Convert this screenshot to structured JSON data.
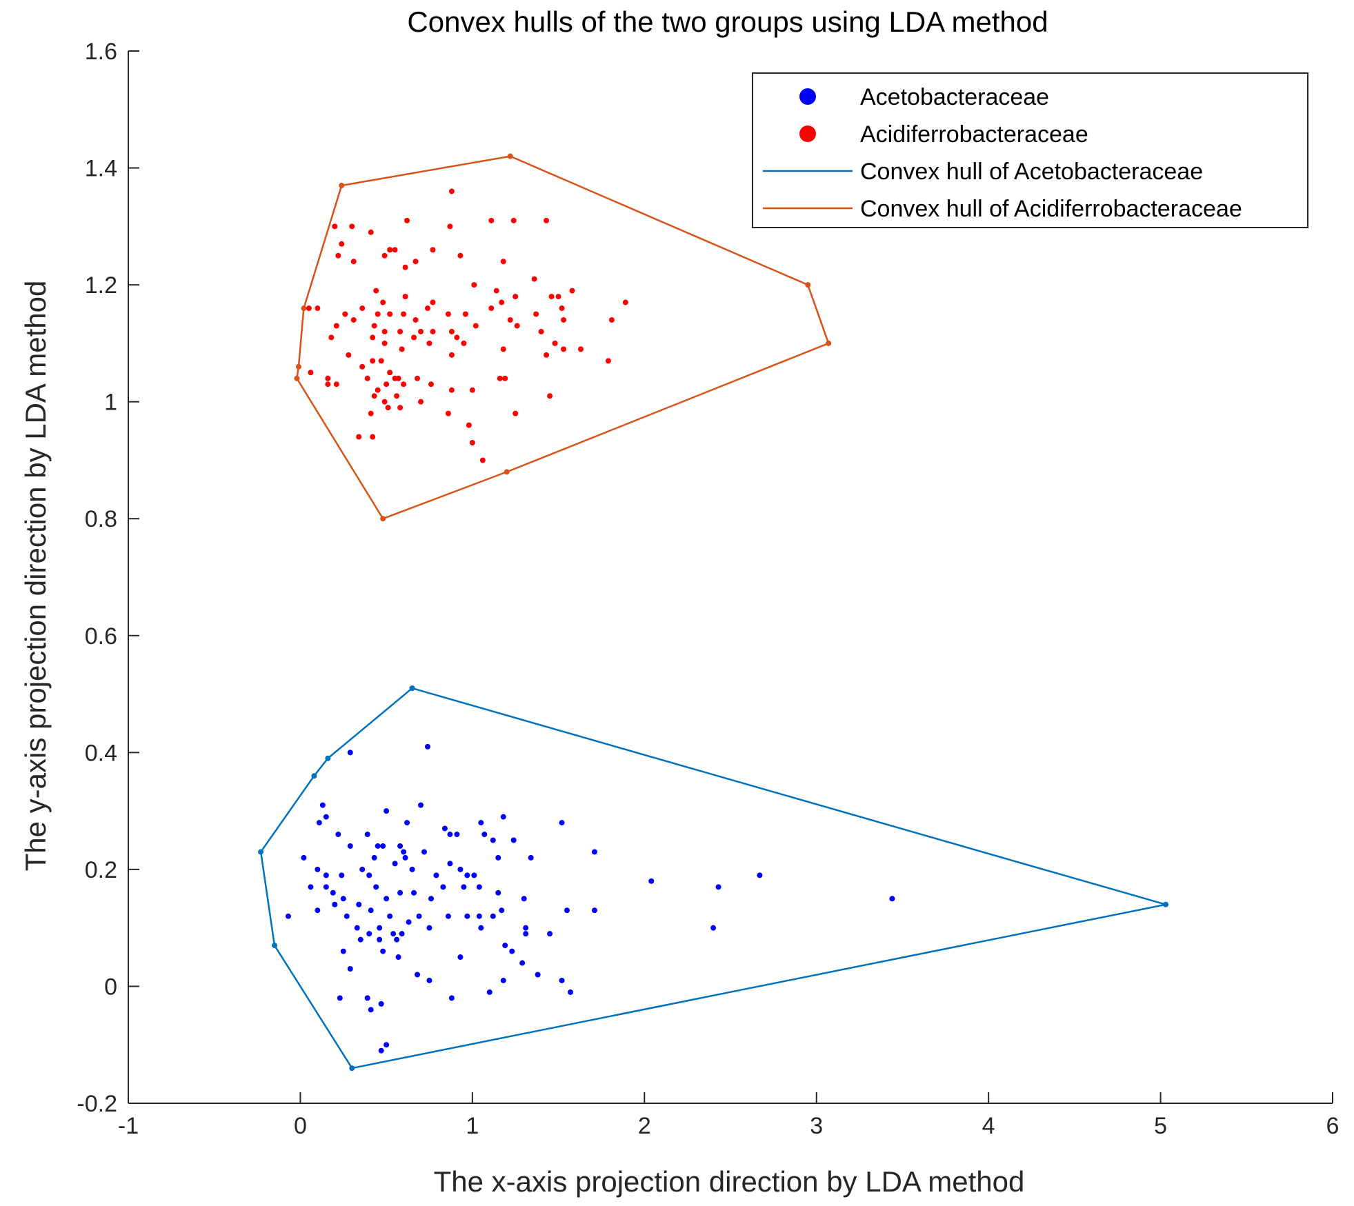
{
  "chart_data": {
    "type": "scatter",
    "title": "Convex hulls of the two groups using LDA method",
    "xlabel": "The x-axis projection direction by LDA method",
    "ylabel": "The y-axis projection direction by LDA method",
    "xlim": [
      -1,
      6
    ],
    "ylim": [
      -0.2,
      1.6
    ],
    "xticks": [
      -1,
      0,
      1,
      2,
      3,
      4,
      5,
      6
    ],
    "yticks": [
      -0.2,
      0,
      0.2,
      0.4,
      0.6,
      0.8,
      1,
      1.2,
      1.4,
      1.6
    ],
    "xtick_labels": [
      "-1",
      "0",
      "1",
      "2",
      "3",
      "4",
      "5",
      "6"
    ],
    "ytick_labels": [
      "-0.2",
      "0",
      "0.2",
      "0.4",
      "0.6",
      "0.8",
      "1",
      "1.2",
      "1.4",
      "1.6"
    ],
    "grid": false,
    "legend_position": "top-right",
    "legend": [
      {
        "label": "Acetobacteraceae",
        "kind": "marker",
        "color": "#0000ff"
      },
      {
        "label": "Acidiferrobacteraceae",
        "kind": "marker",
        "color": "#ff0000"
      },
      {
        "label": "Convex hull of Acetobacteraceae",
        "kind": "line",
        "color": "#0072bd"
      },
      {
        "label": "Convex hull of Acidiferrobacteraceae",
        "kind": "line",
        "color": "#d95319"
      }
    ],
    "series": [
      {
        "name": "Acetobacteraceae",
        "color": "#0000ff",
        "points": [
          [
            0.29,
            0.4
          ],
          [
            0.74,
            0.41
          ],
          [
            0.13,
            0.31
          ],
          [
            0.15,
            0.29
          ],
          [
            0.11,
            0.28
          ],
          [
            0.5,
            0.3
          ],
          [
            0.7,
            0.31
          ],
          [
            0.62,
            0.28
          ],
          [
            1.05,
            0.28
          ],
          [
            1.18,
            0.29
          ],
          [
            1.52,
            0.28
          ],
          [
            0.22,
            0.26
          ],
          [
            0.39,
            0.26
          ],
          [
            0.29,
            0.24
          ],
          [
            0.45,
            0.24
          ],
          [
            0.48,
            0.24
          ],
          [
            0.58,
            0.24
          ],
          [
            0.6,
            0.23
          ],
          [
            0.72,
            0.23
          ],
          [
            0.87,
            0.26
          ],
          [
            0.91,
            0.26
          ],
          [
            0.84,
            0.27
          ],
          [
            1.07,
            0.26
          ],
          [
            1.12,
            0.25
          ],
          [
            1.24,
            0.25
          ],
          [
            1.71,
            0.23
          ],
          [
            0.02,
            0.22
          ],
          [
            0.1,
            0.2
          ],
          [
            0.15,
            0.19
          ],
          [
            0.24,
            0.19
          ],
          [
            0.36,
            0.2
          ],
          [
            0.4,
            0.19
          ],
          [
            0.43,
            0.22
          ],
          [
            0.55,
            0.21
          ],
          [
            0.61,
            0.22
          ],
          [
            0.65,
            0.2
          ],
          [
            0.79,
            0.19
          ],
          [
            0.87,
            0.21
          ],
          [
            0.93,
            0.2
          ],
          [
            0.97,
            0.19
          ],
          [
            1.01,
            0.19
          ],
          [
            1.15,
            0.22
          ],
          [
            1.34,
            0.22
          ],
          [
            0.06,
            0.17
          ],
          [
            0.15,
            0.17
          ],
          [
            0.19,
            0.16
          ],
          [
            0.25,
            0.15
          ],
          [
            0.34,
            0.14
          ],
          [
            0.44,
            0.17
          ],
          [
            0.5,
            0.15
          ],
          [
            0.58,
            0.16
          ],
          [
            0.66,
            0.16
          ],
          [
            0.76,
            0.15
          ],
          [
            0.83,
            0.17
          ],
          [
            0.95,
            0.17
          ],
          [
            1.04,
            0.17
          ],
          [
            1.15,
            0.16
          ],
          [
            1.3,
            0.15
          ],
          [
            2.04,
            0.18
          ],
          [
            2.43,
            0.17
          ],
          [
            2.67,
            0.19
          ],
          [
            3.44,
            0.15
          ],
          [
            -0.07,
            0.12
          ],
          [
            0.1,
            0.13
          ],
          [
            0.2,
            0.14
          ],
          [
            0.27,
            0.12
          ],
          [
            0.33,
            0.1
          ],
          [
            0.41,
            0.13
          ],
          [
            0.46,
            0.1
          ],
          [
            0.52,
            0.12
          ],
          [
            0.63,
            0.11
          ],
          [
            0.69,
            0.12
          ],
          [
            0.75,
            0.1
          ],
          [
            0.86,
            0.12
          ],
          [
            0.97,
            0.12
          ],
          [
            1.04,
            0.12
          ],
          [
            1.12,
            0.12
          ],
          [
            1.17,
            0.13
          ],
          [
            1.31,
            0.1
          ],
          [
            1.55,
            0.13
          ],
          [
            1.71,
            0.13
          ],
          [
            0.35,
            0.08
          ],
          [
            0.4,
            0.09
          ],
          [
            0.46,
            0.08
          ],
          [
            0.54,
            0.09
          ],
          [
            0.56,
            0.08
          ],
          [
            0.59,
            0.09
          ],
          [
            1.05,
            0.1
          ],
          [
            1.19,
            0.07
          ],
          [
            1.31,
            0.09
          ],
          [
            1.45,
            0.09
          ],
          [
            2.4,
            0.1
          ],
          [
            0.25,
            0.06
          ],
          [
            0.29,
            0.03
          ],
          [
            0.48,
            0.06
          ],
          [
            0.57,
            0.05
          ],
          [
            0.68,
            0.02
          ],
          [
            0.75,
            0.01
          ],
          [
            0.93,
            0.05
          ],
          [
            1.18,
            0.01
          ],
          [
            1.23,
            0.06
          ],
          [
            1.29,
            0.04
          ],
          [
            1.38,
            0.02
          ],
          [
            1.52,
            0.01
          ],
          [
            0.23,
            -0.02
          ],
          [
            0.39,
            -0.02
          ],
          [
            0.41,
            -0.04
          ],
          [
            0.47,
            -0.03
          ],
          [
            0.88,
            -0.02
          ],
          [
            1.1,
            -0.01
          ],
          [
            1.57,
            -0.01
          ],
          [
            0.47,
            -0.11
          ],
          [
            0.5,
            -0.1
          ]
        ]
      },
      {
        "name": "Acidiferrobacteraceae",
        "color": "#ff0000",
        "points": [
          [
            0.88,
            1.36
          ],
          [
            0.2,
            1.3
          ],
          [
            0.3,
            1.3
          ],
          [
            0.41,
            1.29
          ],
          [
            0.62,
            1.31
          ],
          [
            0.87,
            1.3
          ],
          [
            1.11,
            1.31
          ],
          [
            1.24,
            1.31
          ],
          [
            1.43,
            1.31
          ],
          [
            0.24,
            1.27
          ],
          [
            0.52,
            1.26
          ],
          [
            0.55,
            1.26
          ],
          [
            0.77,
            1.26
          ],
          [
            0.93,
            1.25
          ],
          [
            0.22,
            1.25
          ],
          [
            0.31,
            1.24
          ],
          [
            0.49,
            1.25
          ],
          [
            0.67,
            1.24
          ],
          [
            0.61,
            1.23
          ],
          [
            1.18,
            1.24
          ],
          [
            1.36,
            1.21
          ],
          [
            0.05,
            1.16
          ],
          [
            0.1,
            1.16
          ],
          [
            0.44,
            1.19
          ],
          [
            0.48,
            1.17
          ],
          [
            0.61,
            1.18
          ],
          [
            0.77,
            1.17
          ],
          [
            1.01,
            1.2
          ],
          [
            1.14,
            1.19
          ],
          [
            1.25,
            1.18
          ],
          [
            1.46,
            1.18
          ],
          [
            1.58,
            1.19
          ],
          [
            1.5,
            1.18
          ],
          [
            1.52,
            1.16
          ],
          [
            1.89,
            1.17
          ],
          [
            0.26,
            1.15
          ],
          [
            0.31,
            1.14
          ],
          [
            0.36,
            1.16
          ],
          [
            0.45,
            1.15
          ],
          [
            0.52,
            1.15
          ],
          [
            0.6,
            1.15
          ],
          [
            0.67,
            1.14
          ],
          [
            0.74,
            1.16
          ],
          [
            0.86,
            1.15
          ],
          [
            0.96,
            1.15
          ],
          [
            1.11,
            1.16
          ],
          [
            1.17,
            1.17
          ],
          [
            1.22,
            1.14
          ],
          [
            1.37,
            1.15
          ],
          [
            1.53,
            1.14
          ],
          [
            1.81,
            1.14
          ],
          [
            0.21,
            1.13
          ],
          [
            0.43,
            1.13
          ],
          [
            0.49,
            1.12
          ],
          [
            0.58,
            1.12
          ],
          [
            0.7,
            1.12
          ],
          [
            0.77,
            1.12
          ],
          [
            0.88,
            1.12
          ],
          [
            1.02,
            1.13
          ],
          [
            1.26,
            1.13
          ],
          [
            1.4,
            1.12
          ],
          [
            0.18,
            1.11
          ],
          [
            0.42,
            1.11
          ],
          [
            0.49,
            1.1
          ],
          [
            0.59,
            1.09
          ],
          [
            0.66,
            1.11
          ],
          [
            0.75,
            1.1
          ],
          [
            0.91,
            1.11
          ],
          [
            0.95,
            1.1
          ],
          [
            1.18,
            1.09
          ],
          [
            1.48,
            1.1
          ],
          [
            1.53,
            1.09
          ],
          [
            1.63,
            1.09
          ],
          [
            1.79,
            1.07
          ],
          [
            0.28,
            1.08
          ],
          [
            0.36,
            1.06
          ],
          [
            0.42,
            1.07
          ],
          [
            0.47,
            1.07
          ],
          [
            0.52,
            1.05
          ],
          [
            0.57,
            1.04
          ],
          [
            0.88,
            1.08
          ],
          [
            1.43,
            1.08
          ],
          [
            0.06,
            1.05
          ],
          [
            0.16,
            1.04
          ],
          [
            0.16,
            1.03
          ],
          [
            0.21,
            1.03
          ],
          [
            0.39,
            1.04
          ],
          [
            0.45,
            1.02
          ],
          [
            0.5,
            1.03
          ],
          [
            0.55,
            1.04
          ],
          [
            0.6,
            1.03
          ],
          [
            0.68,
            1.04
          ],
          [
            0.76,
            1.03
          ],
          [
            1.16,
            1.04
          ],
          [
            1.19,
            1.04
          ],
          [
            0.88,
            1.02
          ],
          [
            1.0,
            1.02
          ],
          [
            0.43,
            1.01
          ],
          [
            0.49,
            1.0
          ],
          [
            0.51,
            0.99
          ],
          [
            0.56,
            1.01
          ],
          [
            0.58,
            0.99
          ],
          [
            0.7,
            1.0
          ],
          [
            0.86,
            0.98
          ],
          [
            1.25,
            0.98
          ],
          [
            1.45,
            1.01
          ],
          [
            0.41,
            0.98
          ],
          [
            0.98,
            0.96
          ],
          [
            1.0,
            0.93
          ],
          [
            0.34,
            0.94
          ],
          [
            0.42,
            0.94
          ],
          [
            1.06,
            0.9
          ]
        ]
      }
    ],
    "hulls": [
      {
        "name": "Convex hull of Acetobacteraceae",
        "color": "#0072bd",
        "vertices": [
          [
            0.65,
            0.51
          ],
          [
            5.03,
            0.14
          ],
          [
            0.3,
            -0.14
          ],
          [
            -0.15,
            0.07
          ],
          [
            -0.23,
            0.23
          ],
          [
            0.08,
            0.36
          ],
          [
            0.16,
            0.39
          ],
          [
            0.65,
            0.51
          ]
        ]
      },
      {
        "name": "Convex hull of Acidiferrobacteraceae",
        "color": "#d95319",
        "vertices": [
          [
            1.22,
            1.42
          ],
          [
            2.95,
            1.2
          ],
          [
            3.07,
            1.1
          ],
          [
            1.2,
            0.88
          ],
          [
            0.48,
            0.8
          ],
          [
            -0.02,
            1.04
          ],
          [
            -0.01,
            1.06
          ],
          [
            0.02,
            1.16
          ],
          [
            0.24,
            1.37
          ],
          [
            1.22,
            1.42
          ]
        ]
      }
    ]
  }
}
